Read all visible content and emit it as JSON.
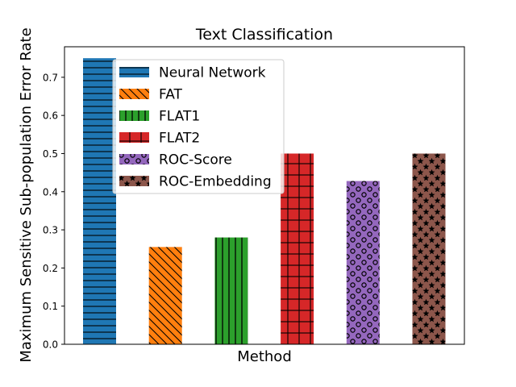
{
  "chart_data": {
    "type": "bar",
    "title": "Text Classification",
    "xlabel": "Method",
    "ylabel": "Maximum Sensitive Sub-population Error Rate",
    "ylim": [
      0,
      0.78
    ],
    "yticks": [
      "0.0",
      "0.1",
      "0.2",
      "0.3",
      "0.4",
      "0.5",
      "0.6",
      "0.7"
    ],
    "grid": false,
    "legend_position": "top-left",
    "series": [
      {
        "name": "Neural Network",
        "value": 0.75,
        "color": "#1f77b4",
        "hatch": "horizontal-lines"
      },
      {
        "name": "FAT",
        "value": 0.255,
        "color": "#ff7f0e",
        "hatch": "diagonal-lines"
      },
      {
        "name": "FLAT1",
        "value": 0.28,
        "color": "#2ca02c",
        "hatch": "vertical-lines"
      },
      {
        "name": "FLAT2",
        "value": 0.5,
        "color": "#d62728",
        "hatch": "grid"
      },
      {
        "name": "ROC-Score",
        "value": 0.428,
        "color": "#9467bd",
        "hatch": "circles"
      },
      {
        "name": "ROC-Embedding",
        "value": 0.5,
        "color": "#8c564b",
        "hatch": "stars"
      }
    ]
  }
}
